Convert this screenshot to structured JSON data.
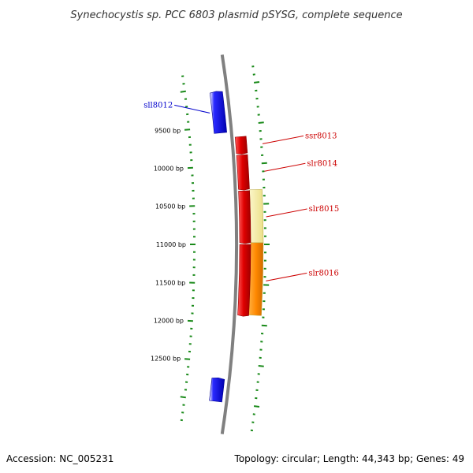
{
  "map": {
    "title": "Synechocystis sp. PCC 6803 plasmid pSYSG, complete sequence",
    "accession": "Accession: NC_005231",
    "summary": "Topology: circular; Length: 44,343 bp; Genes: 49"
  },
  "colors": {
    "backbone": "#808080",
    "tick": "#1a8a1a",
    "forward_gene": "#e00000",
    "reverse_gene": "#0000e0",
    "feature_light": "#efe69a",
    "feature_orange": "#ff8800",
    "label_forward": "#cc0000",
    "label_reverse": "#0000cc"
  },
  "position_labels": [
    {
      "bp": 9500,
      "text": "9500 bp"
    },
    {
      "bp": 10000,
      "text": "10000 bp"
    },
    {
      "bp": 10500,
      "text": "10500 bp"
    },
    {
      "bp": 11000,
      "text": "11000 bp"
    },
    {
      "bp": 11500,
      "text": "11500 bp"
    },
    {
      "bp": 12000,
      "text": "12000 bp"
    },
    {
      "bp": 12500,
      "text": "12500 bp"
    }
  ],
  "genes": [
    {
      "name": "sll8012",
      "strand": "reverse",
      "start": 9050,
      "end": 9580
    },
    {
      "name": "ssr8013",
      "strand": "forward",
      "start": 9650,
      "end": 9870
    },
    {
      "name": "slr8014",
      "strand": "forward",
      "start": 9880,
      "end": 10320
    },
    {
      "name": "slr8015",
      "strand": "forward",
      "start": 10330,
      "end": 10990
    },
    {
      "name": "slr8016",
      "strand": "forward",
      "start": 11000,
      "end": 11900
    },
    {
      "name": "",
      "strand": "reverse",
      "start": 12700,
      "end": 13000
    }
  ],
  "features": [
    {
      "ring": "outer",
      "color": "feature_light",
      "start": 10320,
      "end": 10980
    },
    {
      "ring": "outer",
      "color": "feature_orange",
      "start": 10980,
      "end": 11880
    }
  ]
}
